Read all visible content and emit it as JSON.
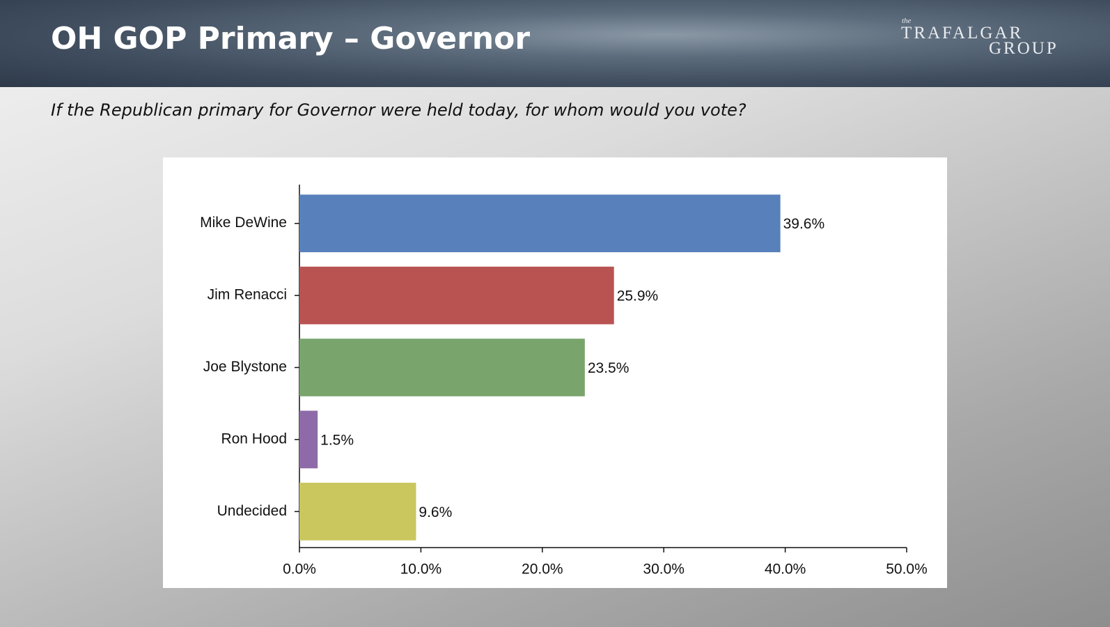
{
  "header": {
    "title": "OH GOP Primary – Governor",
    "logo_small": "the",
    "logo_line1": "TRAFALGAR",
    "logo_line2": "GROUP"
  },
  "subtitle": "If the Republican primary for Governor were held today, for whom would you vote?",
  "chart_data": {
    "type": "bar",
    "orientation": "horizontal",
    "categories": [
      "Mike DeWine",
      "Jim Renacci",
      "Joe Blystone",
      "Ron Hood",
      "Undecided"
    ],
    "values": [
      39.6,
      25.9,
      23.5,
      1.5,
      9.6
    ],
    "value_labels": [
      "39.6%",
      "25.9%",
      "23.5%",
      "1.5%",
      "9.6%"
    ],
    "colors": [
      "#5881bb",
      "#b85352",
      "#79a56d",
      "#8e6ba8",
      "#c9c75d"
    ],
    "xlim": [
      0,
      50
    ],
    "xticks": [
      {
        "value": 0,
        "label": "0.0%"
      },
      {
        "value": 10,
        "label": "10.0%"
      },
      {
        "value": 20,
        "label": "20.0%"
      },
      {
        "value": 30,
        "label": "30.0%"
      },
      {
        "value": 40,
        "label": "40.0%"
      },
      {
        "value": 50,
        "label": "50.0%"
      }
    ],
    "grid": false
  }
}
